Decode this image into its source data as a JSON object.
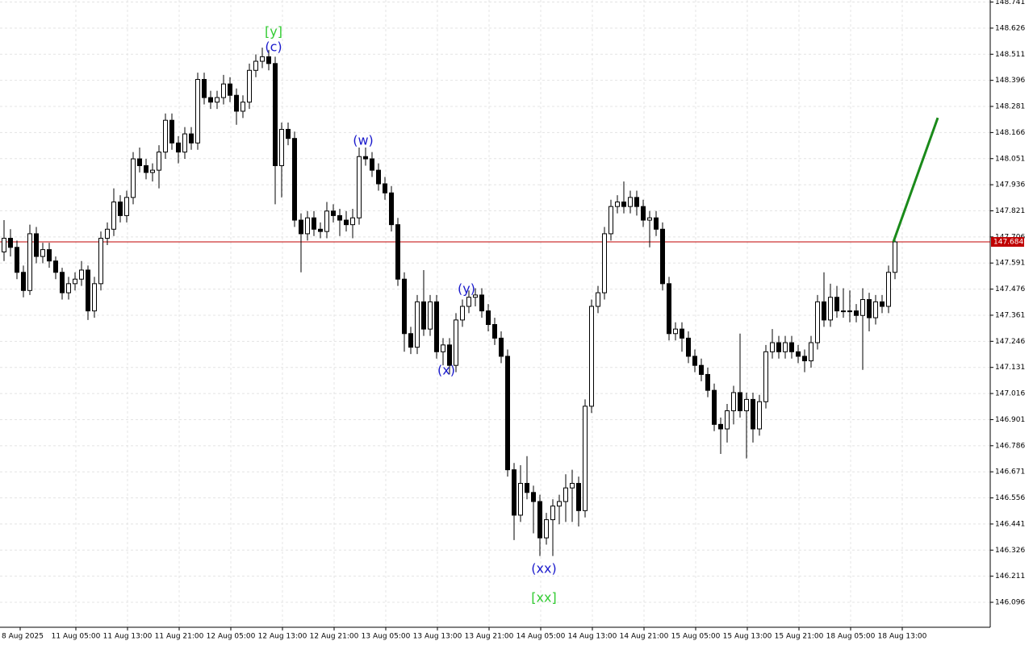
{
  "chart_data": {
    "type": "candlestick",
    "ylim": [
      145.986,
      148.75
    ],
    "yticks": [
      148.741,
      148.626,
      148.511,
      148.396,
      148.281,
      148.166,
      148.051,
      147.936,
      147.821,
      147.706,
      147.591,
      147.476,
      147.361,
      147.246,
      147.131,
      147.016,
      146.901,
      146.786,
      146.671,
      146.556,
      146.441,
      146.326,
      146.211,
      146.096
    ],
    "grid": true,
    "x_labels": [
      "8 Aug 2025",
      "11 Aug 05:00",
      "11 Aug 13:00",
      "11 Aug 21:00",
      "12 Aug 05:00",
      "12 Aug 13:00",
      "12 Aug 21:00",
      "13 Aug 05:00",
      "13 Aug 13:00",
      "13 Aug 21:00",
      "14 Aug 05:00",
      "14 Aug 13:00",
      "14 Aug 21:00",
      "15 Aug 05:00",
      "15 Aug 13:00",
      "15 Aug 21:00",
      "18 Aug 05:00",
      "18 Aug 13:00"
    ],
    "last_price": 147.684,
    "last_price_color": "#c00000",
    "up_color": "#ffffff",
    "down_color": "#000000",
    "ohlc": [
      [
        147.64,
        147.78,
        147.6,
        147.7
      ],
      [
        147.7,
        147.74,
        147.62,
        147.66
      ],
      [
        147.66,
        147.69,
        147.52,
        147.55
      ],
      [
        147.55,
        147.58,
        147.44,
        147.47
      ],
      [
        147.47,
        147.76,
        147.45,
        147.72
      ],
      [
        147.72,
        147.75,
        147.59,
        147.62
      ],
      [
        147.62,
        147.68,
        147.59,
        147.65
      ],
      [
        147.65,
        147.68,
        147.57,
        147.6
      ],
      [
        147.6,
        147.62,
        147.52,
        147.55
      ],
      [
        147.55,
        147.57,
        147.43,
        147.46
      ],
      [
        147.46,
        147.53,
        147.43,
        147.5
      ],
      [
        147.5,
        147.55,
        147.47,
        147.52
      ],
      [
        147.52,
        147.6,
        147.49,
        147.56
      ],
      [
        147.56,
        147.58,
        147.34,
        147.38
      ],
      [
        147.38,
        147.53,
        147.35,
        147.5
      ],
      [
        147.5,
        147.73,
        147.47,
        147.7
      ],
      [
        147.7,
        147.77,
        147.67,
        147.74
      ],
      [
        147.74,
        147.92,
        147.71,
        147.86
      ],
      [
        147.86,
        147.89,
        147.77,
        147.8
      ],
      [
        147.8,
        147.91,
        147.77,
        147.88
      ],
      [
        147.88,
        148.08,
        147.85,
        148.05
      ],
      [
        148.05,
        148.1,
        147.99,
        148.02
      ],
      [
        148.02,
        148.05,
        147.96,
        147.99
      ],
      [
        147.99,
        148.03,
        147.95,
        148.0
      ],
      [
        148.0,
        148.11,
        147.92,
        148.08
      ],
      [
        148.08,
        148.25,
        148.05,
        148.22
      ],
      [
        148.22,
        148.25,
        148.09,
        148.12
      ],
      [
        148.12,
        148.15,
        148.03,
        148.08
      ],
      [
        148.08,
        148.19,
        148.05,
        148.16
      ],
      [
        148.16,
        148.19,
        148.09,
        148.12
      ],
      [
        148.12,
        148.43,
        148.09,
        148.4
      ],
      [
        148.4,
        148.43,
        148.29,
        148.32
      ],
      [
        148.32,
        148.35,
        148.27,
        148.3
      ],
      [
        148.3,
        148.35,
        148.27,
        148.32
      ],
      [
        148.32,
        148.42,
        148.29,
        148.38
      ],
      [
        148.38,
        148.41,
        148.3,
        148.33
      ],
      [
        148.33,
        148.36,
        148.2,
        148.26
      ],
      [
        148.26,
        148.33,
        148.23,
        148.3
      ],
      [
        148.3,
        148.47,
        148.27,
        148.44
      ],
      [
        148.44,
        148.51,
        148.41,
        148.48
      ],
      [
        148.48,
        148.54,
        148.45,
        148.5
      ],
      [
        148.5,
        148.53,
        148.44,
        148.47
      ],
      [
        148.47,
        148.5,
        147.85,
        148.02
      ],
      [
        148.02,
        148.21,
        147.88,
        148.18
      ],
      [
        148.18,
        148.21,
        148.11,
        148.14
      ],
      [
        148.14,
        148.17,
        147.75,
        147.78
      ],
      [
        147.78,
        147.81,
        147.55,
        147.72
      ],
      [
        147.72,
        147.82,
        147.69,
        147.79
      ],
      [
        147.79,
        147.82,
        147.71,
        147.74
      ],
      [
        147.74,
        147.77,
        147.7,
        147.73
      ],
      [
        147.73,
        147.86,
        147.7,
        147.82
      ],
      [
        147.82,
        147.85,
        147.77,
        147.8
      ],
      [
        147.8,
        147.83,
        147.71,
        147.78
      ],
      [
        147.78,
        147.82,
        147.73,
        147.76
      ],
      [
        147.76,
        147.83,
        147.7,
        147.79
      ],
      [
        147.79,
        148.1,
        147.76,
        148.06
      ],
      [
        148.06,
        148.1,
        148.02,
        148.05
      ],
      [
        148.05,
        148.08,
        147.97,
        148.0
      ],
      [
        148.0,
        148.03,
        147.91,
        147.94
      ],
      [
        147.94,
        147.97,
        147.87,
        147.9
      ],
      [
        147.9,
        147.93,
        147.73,
        147.76
      ],
      [
        147.76,
        147.79,
        147.49,
        147.52
      ],
      [
        147.52,
        147.55,
        147.2,
        147.28
      ],
      [
        147.28,
        147.31,
        147.19,
        147.22
      ],
      [
        147.22,
        147.45,
        147.19,
        147.42
      ],
      [
        147.42,
        147.56,
        147.27,
        147.3
      ],
      [
        147.3,
        147.45,
        147.27,
        147.42
      ],
      [
        147.42,
        147.45,
        147.17,
        147.2
      ],
      [
        147.2,
        147.26,
        147.14,
        147.23
      ],
      [
        147.23,
        147.26,
        147.1,
        147.14
      ],
      [
        147.14,
        147.37,
        147.11,
        147.34
      ],
      [
        147.34,
        147.43,
        147.31,
        147.4
      ],
      [
        147.4,
        147.47,
        147.37,
        147.44
      ],
      [
        147.44,
        147.48,
        147.4,
        147.45
      ],
      [
        147.45,
        147.48,
        147.35,
        147.38
      ],
      [
        147.38,
        147.41,
        147.29,
        147.32
      ],
      [
        147.32,
        147.35,
        147.23,
        147.26
      ],
      [
        147.26,
        147.29,
        147.15,
        147.18
      ],
      [
        147.18,
        147.21,
        146.65,
        146.68
      ],
      [
        146.68,
        146.71,
        146.37,
        146.48
      ],
      [
        146.48,
        146.7,
        146.45,
        146.62
      ],
      [
        146.62,
        146.74,
        146.55,
        146.58
      ],
      [
        146.58,
        146.61,
        146.4,
        146.54
      ],
      [
        146.54,
        146.57,
        146.3,
        146.38
      ],
      [
        146.38,
        146.49,
        146.35,
        146.46
      ],
      [
        146.46,
        146.55,
        146.3,
        146.52
      ],
      [
        146.52,
        146.57,
        146.44,
        146.54
      ],
      [
        146.54,
        146.66,
        146.45,
        146.6
      ],
      [
        146.6,
        146.68,
        146.45,
        146.62
      ],
      [
        146.62,
        146.65,
        146.43,
        146.5
      ],
      [
        146.5,
        146.99,
        146.47,
        146.96
      ],
      [
        146.96,
        147.43,
        146.93,
        147.4
      ],
      [
        147.4,
        147.49,
        147.37,
        147.46
      ],
      [
        147.46,
        147.75,
        147.43,
        147.72
      ],
      [
        147.72,
        147.87,
        147.69,
        147.84
      ],
      [
        147.84,
        147.89,
        147.81,
        147.86
      ],
      [
        147.86,
        147.95,
        147.81,
        147.84
      ],
      [
        147.84,
        147.91,
        147.81,
        147.88
      ],
      [
        147.88,
        147.91,
        147.8,
        147.84
      ],
      [
        147.84,
        147.87,
        147.75,
        147.78
      ],
      [
        147.78,
        147.82,
        147.66,
        147.79
      ],
      [
        147.79,
        147.82,
        147.71,
        147.74
      ],
      [
        147.74,
        147.77,
        147.47,
        147.5
      ],
      [
        147.5,
        147.53,
        147.25,
        147.28
      ],
      [
        147.28,
        147.33,
        147.25,
        147.3
      ],
      [
        147.3,
        147.33,
        147.2,
        147.26
      ],
      [
        147.26,
        147.29,
        147.15,
        147.18
      ],
      [
        147.18,
        147.21,
        147.11,
        147.14
      ],
      [
        147.14,
        147.17,
        147.07,
        147.1
      ],
      [
        147.1,
        147.13,
        147.0,
        147.03
      ],
      [
        147.03,
        147.06,
        146.85,
        146.88
      ],
      [
        146.88,
        146.91,
        146.75,
        146.86
      ],
      [
        146.86,
        146.97,
        146.8,
        146.94
      ],
      [
        146.94,
        147.05,
        146.88,
        147.02
      ],
      [
        147.02,
        147.28,
        146.91,
        146.94
      ],
      [
        146.94,
        147.02,
        146.73,
        146.99
      ],
      [
        146.99,
        147.02,
        146.8,
        146.86
      ],
      [
        146.86,
        147.01,
        146.83,
        146.98
      ],
      [
        146.98,
        147.23,
        146.95,
        147.2
      ],
      [
        147.2,
        147.3,
        147.17,
        147.24
      ],
      [
        147.24,
        147.27,
        147.17,
        147.2
      ],
      [
        147.2,
        147.27,
        147.17,
        147.24
      ],
      [
        147.24,
        147.27,
        147.17,
        147.2
      ],
      [
        147.2,
        147.23,
        147.15,
        147.18
      ],
      [
        147.18,
        147.21,
        147.11,
        147.16
      ],
      [
        147.16,
        147.27,
        147.13,
        147.24
      ],
      [
        147.24,
        147.45,
        147.21,
        147.42
      ],
      [
        147.42,
        147.55,
        147.31,
        147.34
      ],
      [
        147.34,
        147.5,
        147.31,
        147.44
      ],
      [
        147.44,
        147.49,
        147.35,
        147.38
      ],
      [
        147.38,
        147.48,
        147.35,
        147.38
      ],
      [
        147.38,
        147.47,
        147.33,
        147.38
      ],
      [
        147.38,
        147.41,
        147.33,
        147.36
      ],
      [
        147.36,
        147.48,
        147.12,
        147.43
      ],
      [
        147.43,
        147.46,
        147.29,
        147.35
      ],
      [
        147.35,
        147.45,
        147.32,
        147.42
      ],
      [
        147.42,
        147.45,
        147.37,
        147.4
      ],
      [
        147.4,
        147.58,
        147.37,
        147.55
      ],
      [
        147.55,
        147.7,
        147.52,
        147.684
      ]
    ],
    "projection": {
      "color": "#1a8a1a",
      "from": 147.684,
      "to": 148.231
    },
    "annotations": [
      {
        "text": "[y]",
        "color": "#33cc33"
      },
      {
        "text": "(c)",
        "color": "#1a1acc"
      },
      {
        "text": "(w)",
        "color": "#1a1acc"
      },
      {
        "text": "(x)",
        "color": "#1a1acc"
      },
      {
        "text": "(y)",
        "color": "#1a1acc"
      },
      {
        "text": "(xx)",
        "color": "#1a1acc"
      },
      {
        "text": "[xx]",
        "color": "#33cc33"
      }
    ]
  }
}
